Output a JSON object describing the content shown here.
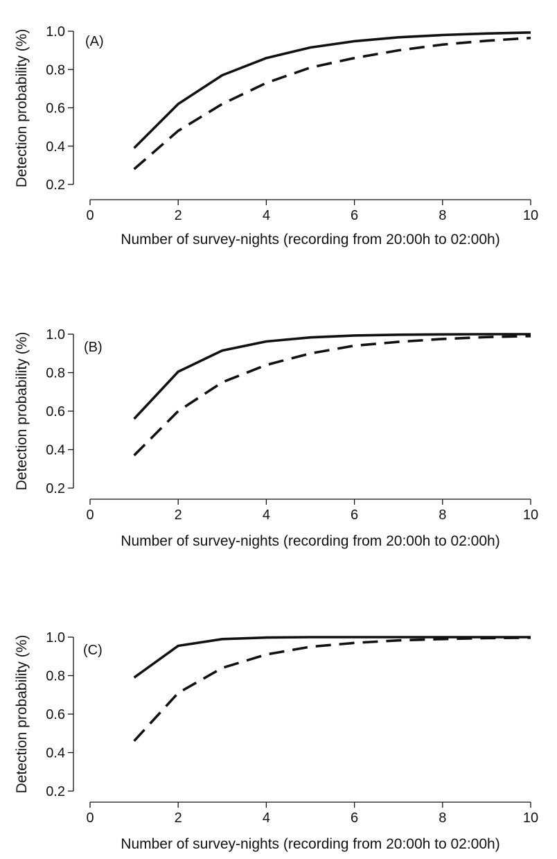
{
  "chart_data": [
    {
      "type": "line",
      "panel_label": "(A)",
      "xlabel": "Number of survey-nights (recording from 20:00h to 02:00h)",
      "ylabel": "Detection probability (%)",
      "xlim": [
        0,
        10
      ],
      "ylim": [
        0.2,
        1.0
      ],
      "xticks": [
        "0",
        "2",
        "4",
        "6",
        "8",
        "10"
      ],
      "yticks": [
        "0.2",
        "0.4",
        "0.6",
        "0.8",
        "1.0"
      ],
      "x": [
        1,
        2,
        3,
        4,
        5,
        6,
        7,
        8,
        9,
        10
      ],
      "series": [
        {
          "style": "solid",
          "values": [
            0.39,
            0.62,
            0.77,
            0.86,
            0.915,
            0.948,
            0.968,
            0.98,
            0.988,
            0.993
          ]
        },
        {
          "style": "dashed",
          "values": [
            0.28,
            0.48,
            0.62,
            0.73,
            0.81,
            0.86,
            0.9,
            0.93,
            0.95,
            0.965
          ]
        }
      ]
    },
    {
      "type": "line",
      "panel_label": "(B)",
      "xlabel": "Number of survey-nights (recording from 20:00h to 02:00h)",
      "ylabel": "Detection probability (%)",
      "xlim": [
        0,
        10
      ],
      "ylim": [
        0.2,
        1.0
      ],
      "xticks": [
        "0",
        "2",
        "4",
        "6",
        "8",
        "10"
      ],
      "yticks": [
        "0.2",
        "0.4",
        "0.6",
        "0.8",
        "1.0"
      ],
      "x": [
        1,
        2,
        3,
        4,
        5,
        6,
        7,
        8,
        9,
        10
      ],
      "series": [
        {
          "style": "solid",
          "values": [
            0.56,
            0.805,
            0.915,
            0.962,
            0.983,
            0.993,
            0.997,
            0.999,
            1.0,
            1.0
          ]
        },
        {
          "style": "dashed",
          "values": [
            0.37,
            0.6,
            0.75,
            0.84,
            0.9,
            0.94,
            0.96,
            0.975,
            0.985,
            0.99
          ]
        }
      ]
    },
    {
      "type": "line",
      "panel_label": "(C)",
      "xlabel": "Number of survey-nights (recording from 20:00h to 02:00h)",
      "ylabel": "Detection probability (%)",
      "xlim": [
        0,
        10
      ],
      "ylim": [
        0.2,
        1.0
      ],
      "xticks": [
        "0",
        "2",
        "4",
        "6",
        "8",
        "10"
      ],
      "yticks": [
        "0.2",
        "0.4",
        "0.6",
        "0.8",
        "1.0"
      ],
      "x": [
        1,
        2,
        3,
        4,
        5,
        6,
        7,
        8,
        9,
        10
      ],
      "series": [
        {
          "style": "solid",
          "values": [
            0.79,
            0.955,
            0.99,
            0.998,
            1.0,
            1.0,
            1.0,
            1.0,
            1.0,
            1.0
          ]
        },
        {
          "style": "dashed",
          "values": [
            0.46,
            0.71,
            0.84,
            0.91,
            0.95,
            0.97,
            0.983,
            0.99,
            0.995,
            0.997
          ]
        }
      ]
    }
  ],
  "colors": {
    "line": "#111111",
    "background": "#ffffff"
  }
}
